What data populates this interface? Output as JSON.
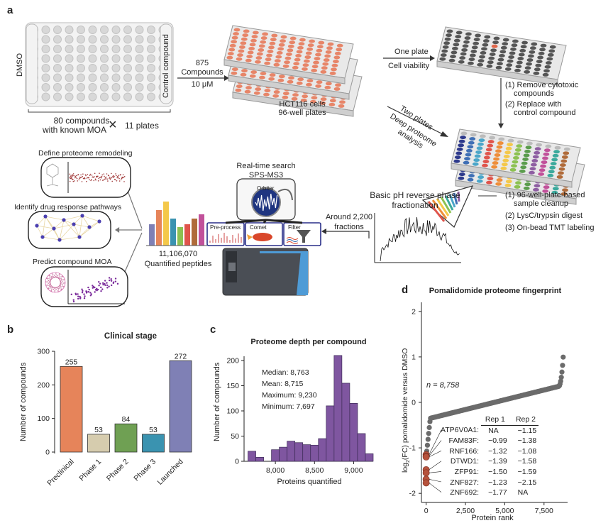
{
  "panel_labels": {
    "a": "a",
    "b": "b",
    "c": "c",
    "d": "d"
  },
  "panel_a": {
    "plate_labels": {
      "left": "DMSO",
      "right": "Control compound"
    },
    "compounds_line1": "80 compounds",
    "compounds_line2": "with known MOA",
    "times_symbol": "×",
    "plates_count": "11 plates",
    "arrow1": {
      "line1": "875",
      "line2": "Compounds",
      "line3": "10 μM"
    },
    "hct_line1": "HCT116 cells",
    "hct_line2": "96-well plates",
    "one_plate": "One plate",
    "cell_viability": "Cell viability",
    "two_plates": "Two plates",
    "deep_proteome_1": "Deep proteome",
    "deep_proteome_2": "analysis",
    "remove_1": "(1) Remove cytotoxic",
    "remove_2": "compounds",
    "replace_1": "(2) Replace with",
    "replace_2": "control compound",
    "step1_1": "(1) 96-well-plate-based",
    "step1_2": "sample cleanup",
    "step2": "(2) LysC/trypsin digest",
    "step3": "(3) On-bead TMT labeling",
    "frac_1": "Basic pH reverse phase",
    "frac_2": "fractionation",
    "fractions_1": "Around 2,200",
    "fractions_2": "fractions",
    "rts_1": "Real-time search",
    "rts_2": "SPS-MS3",
    "orbiter": "Orbiter",
    "preprocess": "Pre-process",
    "comet": "Comet",
    "filter": "Filter",
    "peptides_count": "11,106,070",
    "peptides_label": "Quantified peptides",
    "define": "Define proteome remodeling",
    "identify": "Identify drug response pathways",
    "predict": "Predict compound MOA"
  },
  "colors": {
    "orange": "#E6845A",
    "tan": "#D6CCAE",
    "green": "#6FA053",
    "teal": "#3A93B0",
    "purple": "#7F80B5",
    "violet": "#7F56A0",
    "brown": "#B6523C",
    "grey": "#6b6b6b"
  },
  "chart_data": [
    {
      "type": "bar",
      "title": "Clinical stage",
      "ylabel": "Number of compounds",
      "xlabel": "",
      "categories": [
        "Preclinical",
        "Phase 1",
        "Phase 2",
        "Phase 3",
        "Launched"
      ],
      "values": [
        255,
        53,
        84,
        53,
        272
      ],
      "value_labels": [
        "255",
        "53",
        "84",
        "53",
        "272"
      ],
      "colors": [
        "#E6845A",
        "#D6CCAE",
        "#6FA053",
        "#3A93B0",
        "#7F80B5"
      ],
      "ylim": [
        0,
        300
      ],
      "yticks": [
        0,
        100,
        200,
        300
      ]
    },
    {
      "type": "bar",
      "title": "Proteome depth per compound",
      "ylabel": "Number of compounds",
      "xlabel": "Proteins quantified",
      "bin_starts": [
        7650,
        7750,
        7850,
        7950,
        8050,
        8150,
        8250,
        8350,
        8450,
        8550,
        8650,
        8750,
        8850,
        8950,
        9050,
        9150
      ],
      "bin_width": 100,
      "values": [
        20,
        8,
        0,
        23,
        28,
        40,
        37,
        33,
        32,
        45,
        110,
        210,
        155,
        115,
        55,
        15
      ],
      "xlim": [
        7600,
        9250
      ],
      "xticks": [
        8000,
        8500,
        9000
      ],
      "xtick_labels": [
        "8,000",
        "8,500",
        "9,000"
      ],
      "ylim": [
        0,
        200
      ],
      "yticks": [
        0,
        50,
        100,
        150,
        200
      ],
      "stats": [
        "Median: 8,763",
        "Mean: 8,715",
        "Maximum: 9,230",
        "Minimum: 7,697"
      ]
    },
    {
      "type": "scatter",
      "title": "Pomalidomide proteome fingerprint",
      "ylabel": "log2(FC) pomalidomide versus DMSO",
      "xlabel": "Protein rank",
      "annotation": "n = 8,758",
      "xlim": [
        -300,
        9000
      ],
      "xticks": [
        0,
        2500,
        5000,
        7500
      ],
      "xtick_labels": [
        "0",
        "2,500",
        "5,000",
        "7,500"
      ],
      "ylim": [
        -2.2,
        2.2
      ],
      "yticks": [
        -2,
        -1,
        0,
        1,
        2
      ],
      "highlighted": [
        {
          "protein": "ATP6V0A1",
          "rep1": "NA",
          "rep2": "−1.15",
          "log2fc": -1.15
        },
        {
          "protein": "FAM83F",
          "rep1": "−0.99",
          "rep2": "−1.38",
          "log2fc": -1.18
        },
        {
          "protein": "RNF166",
          "rep1": "−1.32",
          "rep2": "−1.08",
          "log2fc": -1.2
        },
        {
          "protein": "DTWD1",
          "rep1": "−1.39",
          "rep2": "−1.58",
          "log2fc": -1.48
        },
        {
          "protein": "ZFP91",
          "rep1": "−1.50",
          "rep2": "−1.59",
          "log2fc": -1.55
        },
        {
          "protein": "ZNF827",
          "rep1": "−1.23",
          "rep2": "−2.15",
          "log2fc": -1.69
        },
        {
          "protein": "ZNF692",
          "rep1": "−1.77",
          "rep2": "NA",
          "log2fc": -1.77
        }
      ],
      "table_headers": [
        "Rep 1",
        "Rep 2"
      ]
    }
  ]
}
